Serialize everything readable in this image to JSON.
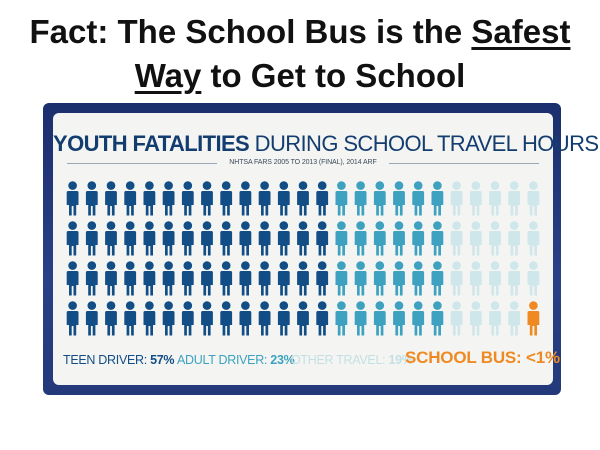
{
  "slide": {
    "title_part1": "Fact:  The School Bus is the ",
    "title_underlined1": "Safest",
    "title_underlined2": "Way",
    "title_part2": " to Get to School"
  },
  "infographic": {
    "heading_bold": "YOUTH FATALITIES",
    "heading_light": "DURING SCHOOL TRAVEL HOURS",
    "source": "NHTSA FARS 2005 TO 2013 (FINAL), 2014 ARF",
    "pictograph": {
      "rows": 4,
      "columns": 25,
      "groups": [
        {
          "label": "TEEN DRIVER:",
          "value": "57%",
          "units": 57,
          "color": "#124d86"
        },
        {
          "label": "ADULT DRIVER:",
          "value": "23%",
          "units": 23,
          "color": "#3da1bf"
        },
        {
          "label": "OTHER TRAVEL:",
          "value": "19%",
          "units": 19,
          "color": "#cfe7ea"
        },
        {
          "label": "SCHOOL BUS:",
          "value": "<1%",
          "units": 1,
          "color": "#ef8a23"
        }
      ]
    },
    "colors": {
      "teen": "#124d86",
      "adult": "#3da1bf",
      "other": "#cfe7ea",
      "bus": "#ef8a23",
      "heading": "#143d6f"
    }
  }
}
